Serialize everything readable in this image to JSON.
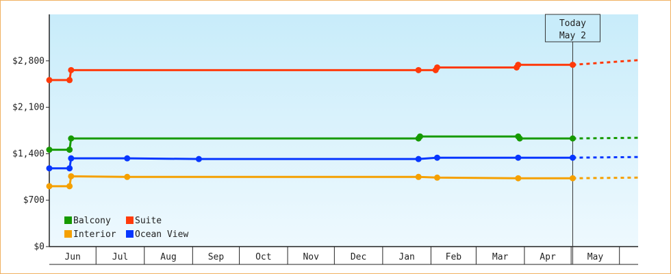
{
  "chart_data": {
    "type": "line",
    "title": "",
    "xlabel": "",
    "ylabel": "",
    "ylim": [
      0,
      3500
    ],
    "y_ticks": [
      {
        "value": 0,
        "label": "$0"
      },
      {
        "value": 700,
        "label": "$700"
      },
      {
        "value": 1400,
        "label": "$1,400"
      },
      {
        "value": 2100,
        "label": "$2,100"
      },
      {
        "value": 2800,
        "label": "$2,800"
      }
    ],
    "x_range": [
      "2023-06-01",
      "2024-06-13"
    ],
    "months": [
      {
        "label": "Jun",
        "start": "2023-06-01"
      },
      {
        "label": "Jul",
        "start": "2023-07-01"
      },
      {
        "label": "Aug",
        "start": "2023-08-01"
      },
      {
        "label": "Sep",
        "start": "2023-09-01"
      },
      {
        "label": "Oct",
        "start": "2023-10-01"
      },
      {
        "label": "Nov",
        "start": "2023-11-01"
      },
      {
        "label": "Dec",
        "start": "2023-12-01"
      },
      {
        "label": "Jan",
        "start": "2024-01-01"
      },
      {
        "label": "Feb",
        "start": "2024-02-01"
      },
      {
        "label": "Mar",
        "start": "2024-03-01"
      },
      {
        "label": "Apr",
        "start": "2024-04-01"
      },
      {
        "label": "May",
        "start": "2024-05-01"
      }
    ],
    "grid": false,
    "background": "gradient light blue",
    "today": {
      "line1": "Today",
      "line2": "May 2",
      "date": "2024-05-02"
    },
    "legend": {
      "placement": "bottom-left",
      "items": [
        {
          "label": "Balcony",
          "color": "#169a00"
        },
        {
          "label": "Suite",
          "color": "#ff3a0a"
        },
        {
          "label": "Interior",
          "color": "#f5a000"
        },
        {
          "label": "Ocean View",
          "color": "#0636ff"
        }
      ]
    },
    "series": [
      {
        "name": "Suite",
        "color": "#ff3a0a",
        "points": [
          [
            "2023-06-01",
            2510
          ],
          [
            "2023-06-14",
            2510
          ],
          [
            "2023-06-15",
            2660
          ],
          [
            "2024-01-24",
            2660
          ],
          [
            "2024-02-04",
            2660
          ],
          [
            "2024-02-05",
            2700
          ],
          [
            "2024-03-27",
            2700
          ],
          [
            "2024-03-28",
            2740
          ],
          [
            "2024-05-02",
            2740
          ]
        ],
        "forecast": [
          [
            "2024-05-02",
            2740
          ],
          [
            "2024-06-13",
            2810
          ]
        ]
      },
      {
        "name": "Balcony",
        "color": "#169a00",
        "points": [
          [
            "2023-06-01",
            1460
          ],
          [
            "2023-06-14",
            1460
          ],
          [
            "2023-06-15",
            1630
          ],
          [
            "2024-01-24",
            1630
          ],
          [
            "2024-01-25",
            1660
          ],
          [
            "2024-03-28",
            1660
          ],
          [
            "2024-03-29",
            1630
          ],
          [
            "2024-05-02",
            1630
          ]
        ],
        "forecast": [
          [
            "2024-05-02",
            1630
          ],
          [
            "2024-06-13",
            1640
          ]
        ]
      },
      {
        "name": "Ocean View",
        "color": "#0636ff",
        "points": [
          [
            "2023-06-01",
            1180
          ],
          [
            "2023-06-14",
            1180
          ],
          [
            "2023-06-15",
            1330
          ],
          [
            "2023-07-21",
            1330
          ],
          [
            "2023-09-05",
            1320
          ],
          [
            "2024-01-24",
            1320
          ],
          [
            "2024-02-05",
            1340
          ],
          [
            "2024-03-28",
            1340
          ],
          [
            "2024-05-02",
            1340
          ]
        ],
        "forecast": [
          [
            "2024-05-02",
            1340
          ],
          [
            "2024-06-13",
            1350
          ]
        ]
      },
      {
        "name": "Interior",
        "color": "#f5a000",
        "points": [
          [
            "2023-06-01",
            910
          ],
          [
            "2023-06-14",
            910
          ],
          [
            "2023-06-15",
            1060
          ],
          [
            "2023-07-21",
            1050
          ],
          [
            "2024-01-24",
            1050
          ],
          [
            "2024-02-05",
            1040
          ],
          [
            "2024-03-28",
            1030
          ],
          [
            "2024-05-02",
            1030
          ]
        ],
        "forecast": [
          [
            "2024-05-02",
            1030
          ],
          [
            "2024-06-13",
            1040
          ]
        ]
      }
    ]
  }
}
